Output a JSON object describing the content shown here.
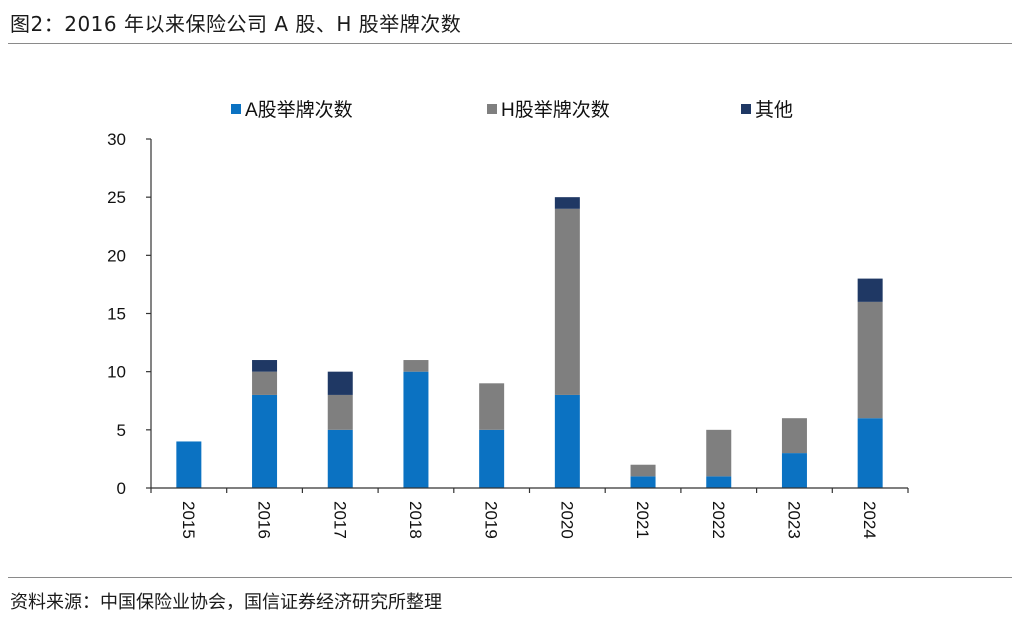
{
  "figure": {
    "title": "图2：2016 年以来保险公司 A 股、H 股举牌次数",
    "source": "资料来源：中国保险业协会，国信证券经济研究所整理"
  },
  "chart_data": {
    "type": "bar",
    "stacked": true,
    "categories": [
      "2015",
      "2016",
      "2017",
      "2018",
      "2019",
      "2020",
      "2021",
      "2022",
      "2023",
      "2024"
    ],
    "series": [
      {
        "name": "A股举牌次数",
        "color": "#0B72C2",
        "values": [
          4,
          8,
          5,
          10,
          5,
          8,
          1,
          1,
          3,
          6
        ]
      },
      {
        "name": "H股举牌次数",
        "color": "#7F7F7F",
        "values": [
          0,
          2,
          3,
          1,
          4,
          16,
          1,
          4,
          3,
          10
        ]
      },
      {
        "name": "其他",
        "color": "#1F3864",
        "values": [
          0,
          1,
          2,
          0,
          0,
          1,
          0,
          0,
          0,
          2
        ]
      }
    ],
    "ylim": [
      0,
      30
    ],
    "yticks": [
      0,
      5,
      10,
      15,
      20,
      25,
      30
    ],
    "legend_position": "top",
    "grid": false,
    "xtick_rotation": "vertical"
  }
}
